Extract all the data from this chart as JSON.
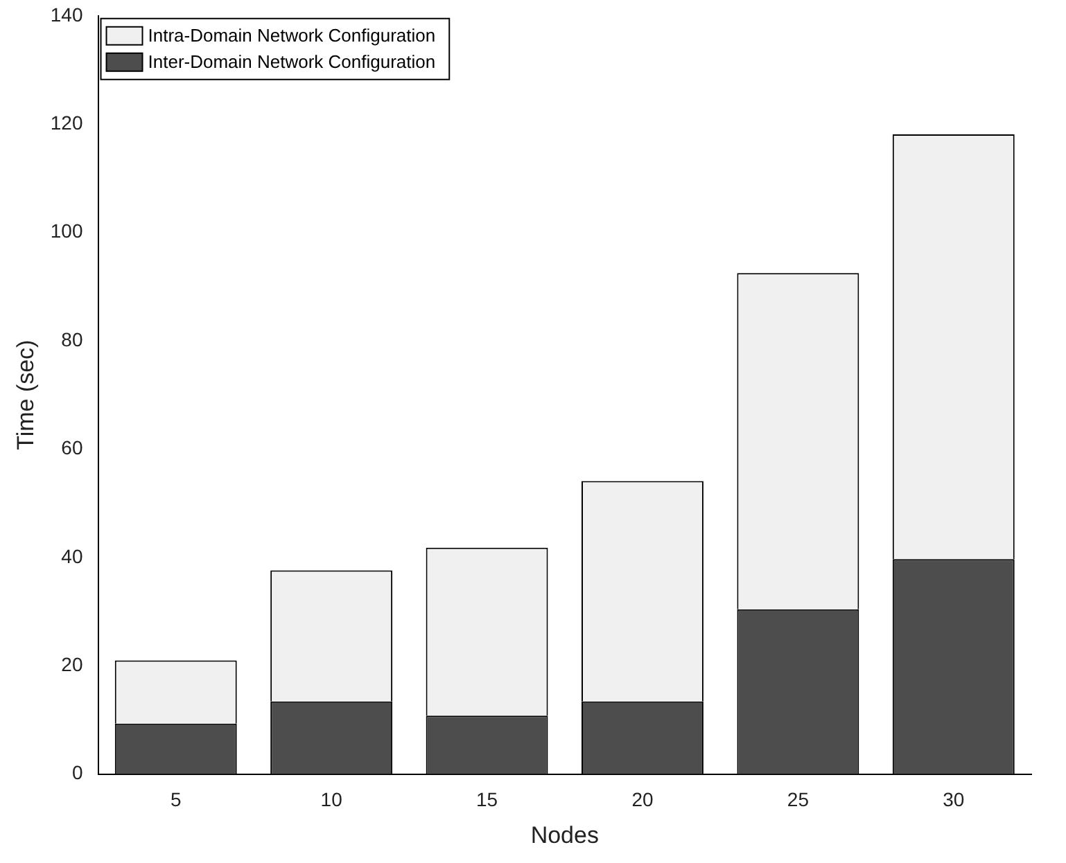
{
  "chart_data": {
    "type": "bar",
    "stacked": true,
    "xlabel": "Nodes",
    "ylabel": "Time (sec)",
    "categories": [
      "5",
      "10",
      "15",
      "20",
      "25",
      "30"
    ],
    "series": [
      {
        "name": "Inter-Domain Network Configuration",
        "color": "#4d4d4d",
        "values": [
          9.3,
          13.4,
          10.8,
          13.4,
          30.4,
          39.7
        ]
      },
      {
        "name": "Intra-Domain Network Configuration",
        "color": "#f0f0f0",
        "values": [
          11.7,
          24.2,
          31,
          40.7,
          62.1,
          78.4
        ]
      }
    ],
    "ylim": [
      0,
      140
    ],
    "yticks": [
      0,
      20,
      40,
      60,
      80,
      100,
      120,
      140
    ],
    "grid": false,
    "legend": "top left"
  }
}
